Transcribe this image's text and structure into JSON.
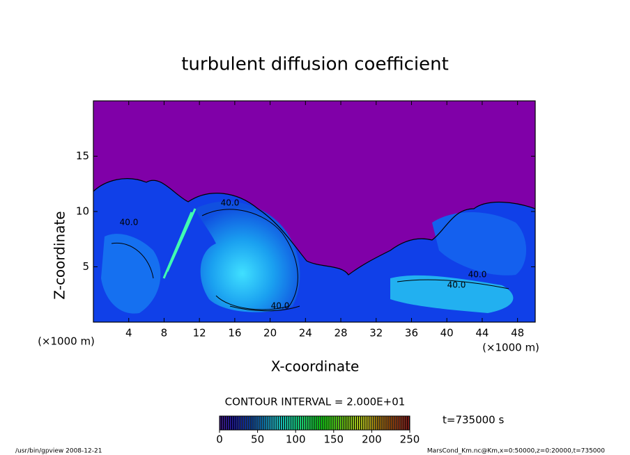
{
  "chart_data": {
    "type": "contour",
    "title": "turbulent diffusion coefficient",
    "x_label": "X-coordinate",
    "y_label": "Z-coordinate",
    "x_unit_label": "(×1000 m)",
    "y_unit_label": "(×1000 m)",
    "xlim": [
      0,
      50
    ],
    "xticks": [
      4,
      8,
      12,
      16,
      20,
      24,
      28,
      32,
      36,
      40,
      44,
      48
    ],
    "ylim": [
      0,
      20
    ],
    "yticks": [
      5,
      10,
      15
    ],
    "contour_labels": [
      {
        "value": 40,
        "label": "40.0"
      },
      {
        "value": 40,
        "label": "40.0"
      },
      {
        "value": 40,
        "label": "40.0"
      },
      {
        "value": 40,
        "label": "40.0"
      },
      {
        "value": 40,
        "label": "40.0"
      }
    ],
    "contour_interval_label": "CONTOUR INTERVAL = 2.000E+01",
    "time_label": "t=735000 s",
    "clim": [
      0,
      250
    ],
    "cticks": [
      0,
      50,
      100,
      150,
      200,
      250
    ],
    "background_color": "#8000a8",
    "footer_left": "/usr/bin/gpview   2008-12-21",
    "footer_right": "MarsCond_Km.nc@Km,x=0:50000,z=0:20000,t=735000"
  }
}
